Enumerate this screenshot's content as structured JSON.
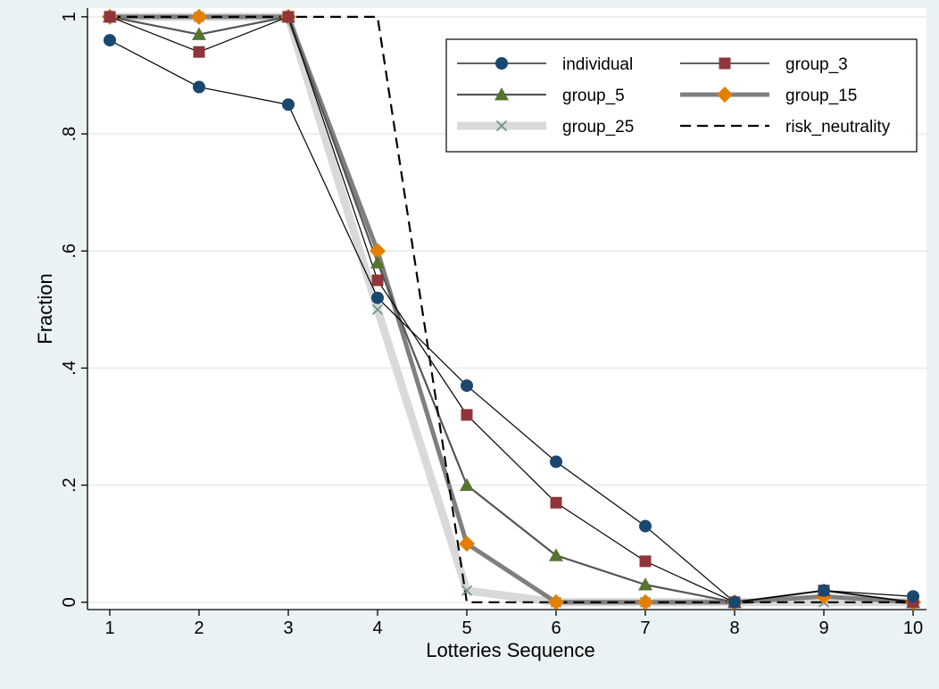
{
  "chart_data": {
    "type": "line",
    "title": "",
    "xlabel": "Lotteries Sequence",
    "ylabel": "Fraction",
    "x": [
      1,
      2,
      3,
      4,
      5,
      6,
      7,
      8,
      9,
      10
    ],
    "xticks": [
      "1",
      "2",
      "3",
      "4",
      "5",
      "6",
      "7",
      "8",
      "9",
      "10"
    ],
    "yticks": [
      {
        "value": 0,
        "label": "0"
      },
      {
        "value": 0.2,
        "label": ".2"
      },
      {
        "value": 0.4,
        "label": ".4"
      },
      {
        "value": 0.6,
        "label": ".6"
      },
      {
        "value": 0.8,
        "label": ".8"
      },
      {
        "value": 1,
        "label": "1"
      }
    ],
    "xlim": [
      0.75,
      10.15
    ],
    "ylim": [
      -0.0125,
      1.015
    ],
    "grid": true,
    "legend_position": "top-right",
    "series": [
      {
        "name": "individual",
        "values": [
          0.96,
          0.88,
          0.85,
          0.52,
          0.37,
          0.24,
          0.13,
          0.0,
          0.02,
          0.01
        ],
        "color": "#1a476f",
        "marker": "circle",
        "line_style": "solid",
        "line_color": "#000000",
        "line_weight": "thin"
      },
      {
        "name": "group_3",
        "values": [
          1.0,
          0.94,
          1.0,
          0.55,
          0.32,
          0.17,
          0.07,
          0.0,
          0.02,
          0.0
        ],
        "color": "#90353b",
        "marker": "square",
        "line_style": "solid",
        "line_color": "#000000",
        "line_weight": "thin"
      },
      {
        "name": "group_5",
        "values": [
          1.0,
          0.97,
          1.0,
          0.58,
          0.2,
          0.08,
          0.03,
          0.0,
          0.02,
          0.0
        ],
        "color": "#55752f",
        "marker": "triangle",
        "line_style": "solid",
        "line_color": "#555555",
        "line_weight": "medium"
      },
      {
        "name": "group_15",
        "values": [
          1.0,
          1.0,
          1.0,
          0.6,
          0.1,
          0.0,
          0.0,
          0.0,
          0.01,
          0.0
        ],
        "color": "#e37e00",
        "marker": "diamond",
        "line_style": "solid",
        "line_color": "#7f7f7f",
        "line_weight": "thick"
      },
      {
        "name": "group_25",
        "values": [
          1.0,
          1.0,
          1.0,
          0.5,
          0.02,
          0.0,
          0.0,
          0.0,
          0.0,
          0.0
        ],
        "color": "#6e8e84",
        "marker": "x",
        "line_style": "solid",
        "line_color": "#d9d9d9",
        "line_weight": "xthick"
      },
      {
        "name": "risk_neutrality",
        "values": [
          1,
          1,
          1,
          1,
          0,
          0,
          0,
          0,
          0,
          0
        ],
        "color": "#000000",
        "marker": "none",
        "line_style": "dashed",
        "line_color": "#000000",
        "line_weight": "medium"
      }
    ]
  }
}
